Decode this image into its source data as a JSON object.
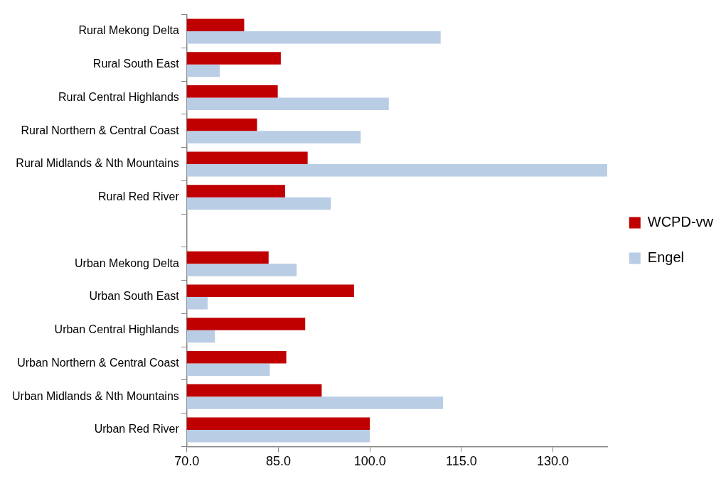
{
  "chart_data": {
    "type": "bar",
    "orientation": "horizontal",
    "categories": [
      "Rural Mekong Delta",
      "Rural South East",
      "Rural Central Highlands",
      "Rural Northern & Central Coast",
      "Rural Midlands & Nth Mountains",
      "Rural Red River",
      null,
      "Urban Mekong Delta",
      "Urban South East",
      "Urban Central Highlands",
      "Urban Northern & Central Coast",
      "Urban Midlands & Nth Mountains",
      "Urban Red River"
    ],
    "series": [
      {
        "name": "WCPD-vw",
        "color": "#c00000",
        "values": [
          79.4,
          85.4,
          84.9,
          81.5,
          89.8,
          86.1,
          null,
          83.4,
          97.4,
          89.4,
          86.3,
          92.1,
          100
        ]
      },
      {
        "name": "Engel",
        "color": "#b9cde5",
        "values": [
          111.6,
          75.4,
          103.1,
          98.5,
          138.9,
          93.6,
          null,
          88.0,
          73.4,
          74.6,
          83.6,
          112.0,
          100
        ]
      }
    ],
    "xlim": [
      70,
      139
    ],
    "xticks": [
      {
        "value": 70,
        "label": "70.0"
      },
      {
        "value": 85,
        "label": "85.0"
      },
      {
        "value": 100,
        "label": "100.0"
      },
      {
        "value": 115,
        "label": "115.0"
      },
      {
        "value": 130,
        "label": "130.0"
      }
    ],
    "grid": false,
    "legend": "right"
  }
}
